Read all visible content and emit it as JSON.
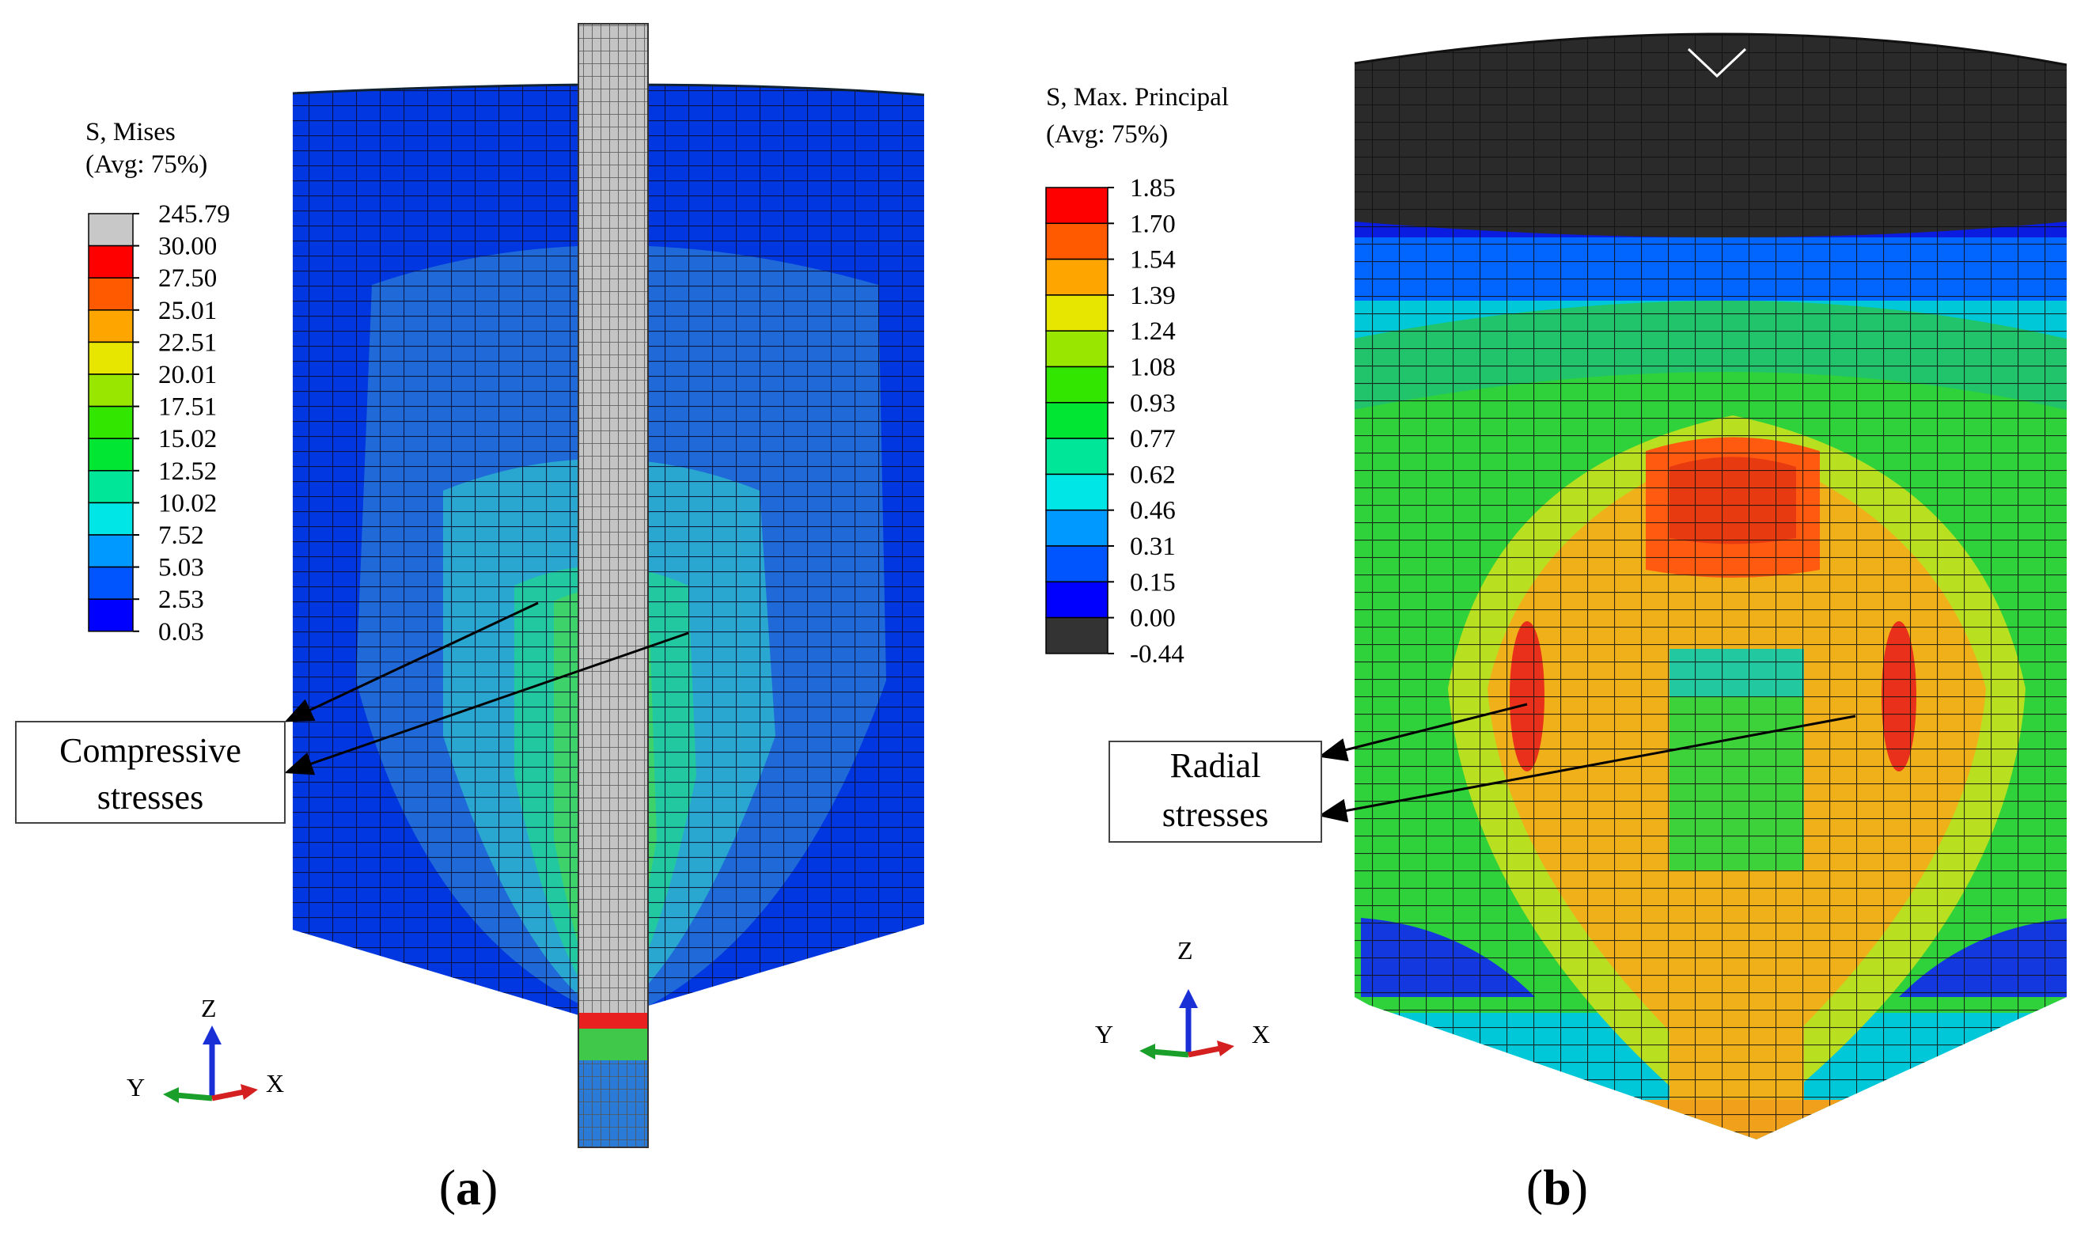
{
  "panel_a": {
    "legend_title": "S, Mises",
    "legend_subtitle": "(Avg: 75%)",
    "legend_values": [
      "245.79",
      "30.00",
      "27.50",
      "25.01",
      "22.51",
      "20.01",
      "17.51",
      "15.02",
      "12.52",
      "10.02",
      "7.52",
      "5.03",
      "2.53",
      "0.03"
    ],
    "legend_colors": [
      "#c8c8c8",
      "#ff0000",
      "#ff5a00",
      "#ffa500",
      "#e6e600",
      "#99e600",
      "#33e600",
      "#00e633",
      "#00e699",
      "#00e6e6",
      "#0099ff",
      "#0055ff",
      "#0000ff"
    ],
    "callout_text": [
      "Compressive",
      "stresses"
    ],
    "triad": {
      "z": "Z",
      "y": "Y",
      "x": "X"
    },
    "caption": {
      "open": "(",
      "letter": "a",
      "close": ")"
    }
  },
  "panel_b": {
    "legend_title": "S, Max. Principal",
    "legend_subtitle": "(Avg: 75%)",
    "legend_values": [
      "1.85",
      "1.70",
      "1.54",
      "1.39",
      "1.24",
      "1.08",
      "0.93",
      "0.77",
      "0.62",
      "0.46",
      "0.31",
      "0.15",
      "0.00",
      "-0.44"
    ],
    "legend_colors": [
      "#ff0000",
      "#ff5a00",
      "#ffa500",
      "#e6e600",
      "#99e600",
      "#33e600",
      "#00e633",
      "#00e699",
      "#00e6e6",
      "#0099ff",
      "#0055ff",
      "#0000ff",
      "#333333"
    ],
    "callout_text": [
      "Radial",
      "stresses"
    ],
    "triad": {
      "z": "Z",
      "y": "Y",
      "x": "X"
    },
    "caption": {
      "open": "(",
      "letter": "b",
      "close": ")"
    }
  }
}
